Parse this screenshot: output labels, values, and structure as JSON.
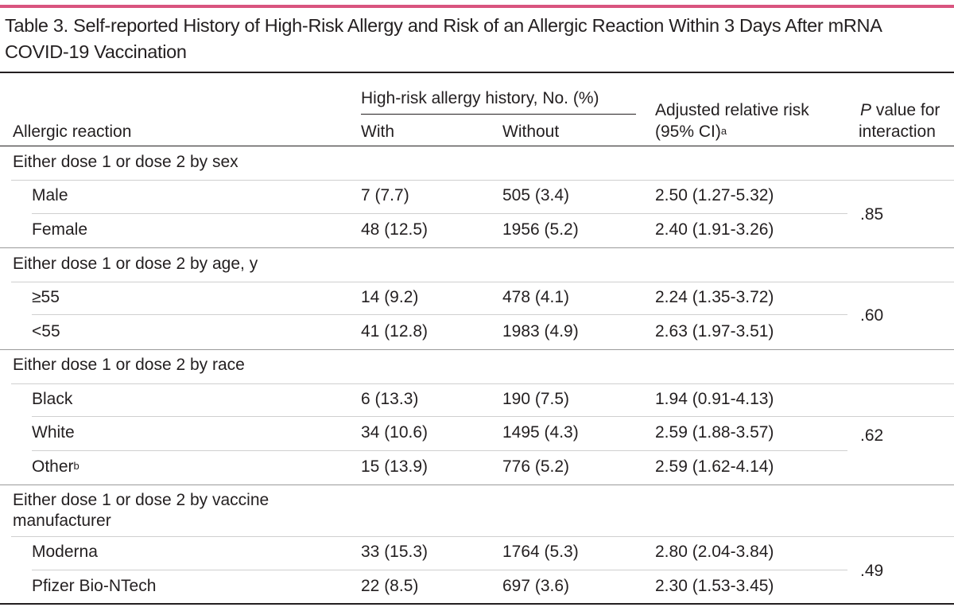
{
  "title": "Table 3. Self-reported History of High-Risk Allergy and Risk of an Allergic Reaction Within 3 Days After mRNA COVID-19 Vaccination",
  "header": {
    "group_label": "High-risk allergy history, No. (%)",
    "col_reaction": "Allergic reaction",
    "col_with": "With",
    "col_without": "Without",
    "col_arr_line1": "Adjusted relative risk",
    "col_arr_line2": "(95% CI)",
    "col_arr_sup": "a",
    "col_p_italic": "P",
    "col_p_rest": " value for",
    "col_p_line2": "interaction"
  },
  "groups": [
    {
      "label": "Either dose 1 or dose 2 by sex",
      "p": ".85",
      "rows": [
        {
          "label": "Male",
          "with": "7 (7.7)",
          "without": "505 (3.4)",
          "arr": "2.50 (1.27-5.32)"
        },
        {
          "label": "Female",
          "with": "48 (12.5)",
          "without": "1956 (5.2)",
          "arr": "2.40 (1.91-3.26)"
        }
      ]
    },
    {
      "label": "Either dose 1 or dose 2 by age, y",
      "p": ".60",
      "rows": [
        {
          "label": "≥55",
          "with": "14 (9.2)",
          "without": "478 (4.1)",
          "arr": "2.24 (1.35-3.72)"
        },
        {
          "label": "<55",
          "with": "41 (12.8)",
          "without": "1983 (4.9)",
          "arr": "2.63 (1.97-3.51)"
        }
      ]
    },
    {
      "label": "Either dose 1 or dose 2 by race",
      "p": ".62",
      "rows": [
        {
          "label": "Black",
          "with": "6 (13.3)",
          "without": "190 (7.5)",
          "arr": "1.94 (0.91-4.13)"
        },
        {
          "label": "White",
          "with": "34 (10.6)",
          "without": "1495 (4.3)",
          "arr": "2.59 (1.88-3.57)"
        },
        {
          "label": "Other",
          "sup": "b",
          "with": "15 (13.9)",
          "without": "776 (5.2)",
          "arr": "2.59 (1.62-4.14)"
        }
      ]
    },
    {
      "label_line1": "Either dose 1 or dose 2 by vaccine",
      "label_line2": "manufacturer",
      "p": ".49",
      "rows": [
        {
          "label": "Moderna",
          "with": "33 (15.3)",
          "without": "1764 (5.3)",
          "arr": "2.80 (2.04-3.84)"
        },
        {
          "label": "Pfizer Bio-NTech",
          "with": "22 (8.5)",
          "without": "697 (3.6)",
          "arr": "2.30 (1.53-3.45)"
        }
      ]
    }
  ]
}
